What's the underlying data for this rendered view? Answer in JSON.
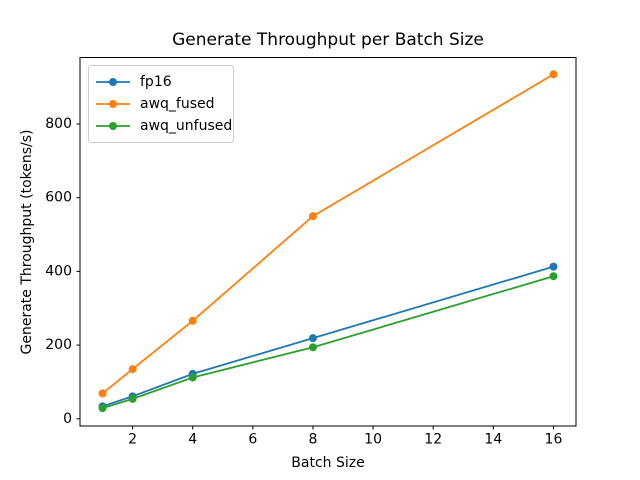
{
  "chart_data": {
    "type": "line",
    "title": "Generate Throughput per Batch Size",
    "xlabel": "Batch Size",
    "ylabel": "Generate Throughput (tokens/s)",
    "x": [
      1,
      2,
      4,
      8,
      16
    ],
    "series": [
      {
        "name": "fp16",
        "color": "#1f77b4",
        "values": [
          34,
          61,
          122,
          219,
          413
        ]
      },
      {
        "name": "awq_fused",
        "color": "#ff7f0e",
        "values": [
          69,
          135,
          266,
          550,
          935
        ]
      },
      {
        "name": "awq_unfused",
        "color": "#2ca02c",
        "values": [
          29,
          54,
          112,
          194,
          387
        ]
      }
    ],
    "xticks": [
      2,
      4,
      6,
      8,
      10,
      12,
      14,
      16
    ],
    "yticks": [
      0,
      200,
      400,
      600,
      800
    ],
    "xlim": [
      0.25,
      16.75
    ],
    "ylim": [
      -19.5,
      980.5
    ],
    "grid": false,
    "legend_position": "upper left",
    "marker": "o",
    "colors": {
      "spine": "#000000",
      "tick_label": "#000000",
      "legend_border": "#cccccc",
      "background": "#ffffff"
    }
  }
}
